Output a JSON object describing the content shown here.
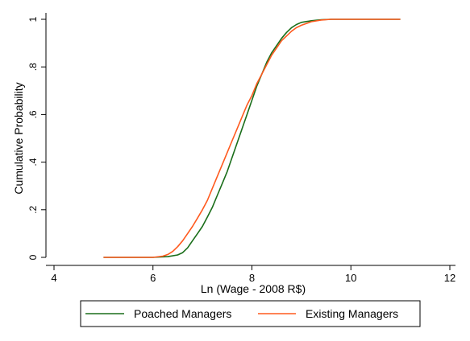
{
  "chart_data": {
    "type": "line",
    "title": "",
    "xlabel": "Ln (Wage - 2008 R$)",
    "ylabel": "Cumulative Probability",
    "xlim": [
      4,
      12
    ],
    "ylim": [
      0,
      1
    ],
    "x_ticks": [
      4,
      6,
      8,
      10,
      12
    ],
    "x_tick_labels": [
      "4",
      "6",
      "8",
      "10",
      "12"
    ],
    "y_ticks": [
      0,
      0.2,
      0.4,
      0.6,
      0.8,
      1
    ],
    "y_tick_labels": [
      "0",
      ".2",
      ".4",
      ".6",
      ".8",
      "1"
    ],
    "grid": false,
    "legend_position": "bottom",
    "series": [
      {
        "name": "Poached Managers",
        "color": "#1a6e1a",
        "x": [
          5.0,
          6.0,
          6.3,
          6.5,
          6.6,
          6.7,
          6.8,
          6.9,
          7.0,
          7.1,
          7.2,
          7.3,
          7.4,
          7.5,
          7.6,
          7.7,
          7.8,
          7.9,
          8.0,
          8.1,
          8.2,
          8.3,
          8.4,
          8.5,
          8.6,
          8.7,
          8.8,
          8.9,
          9.0,
          9.2,
          9.4,
          9.6,
          10.0,
          11.0
        ],
        "y": [
          0.0,
          0.0,
          0.003,
          0.01,
          0.02,
          0.04,
          0.07,
          0.1,
          0.13,
          0.17,
          0.21,
          0.26,
          0.31,
          0.36,
          0.42,
          0.48,
          0.54,
          0.6,
          0.66,
          0.72,
          0.77,
          0.82,
          0.86,
          0.89,
          0.92,
          0.945,
          0.965,
          0.978,
          0.987,
          0.994,
          0.998,
          1.0,
          1.0,
          1.0
        ]
      },
      {
        "name": "Existing Managers",
        "color": "#ff5a1f",
        "x": [
          5.0,
          6.0,
          6.2,
          6.3,
          6.4,
          6.5,
          6.6,
          6.7,
          6.8,
          6.9,
          7.0,
          7.1,
          7.2,
          7.3,
          7.4,
          7.5,
          7.6,
          7.7,
          7.8,
          7.9,
          8.0,
          8.1,
          8.2,
          8.3,
          8.4,
          8.5,
          8.6,
          8.7,
          8.8,
          8.9,
          9.0,
          9.2,
          9.4,
          9.6,
          10.0,
          11.0
        ],
        "y": [
          0.0,
          0.0,
          0.005,
          0.012,
          0.025,
          0.045,
          0.07,
          0.1,
          0.13,
          0.165,
          0.2,
          0.24,
          0.29,
          0.34,
          0.39,
          0.44,
          0.49,
          0.54,
          0.59,
          0.64,
          0.68,
          0.73,
          0.77,
          0.81,
          0.85,
          0.88,
          0.91,
          0.93,
          0.95,
          0.965,
          0.975,
          0.99,
          0.997,
          1.0,
          1.0,
          1.0
        ]
      }
    ]
  }
}
